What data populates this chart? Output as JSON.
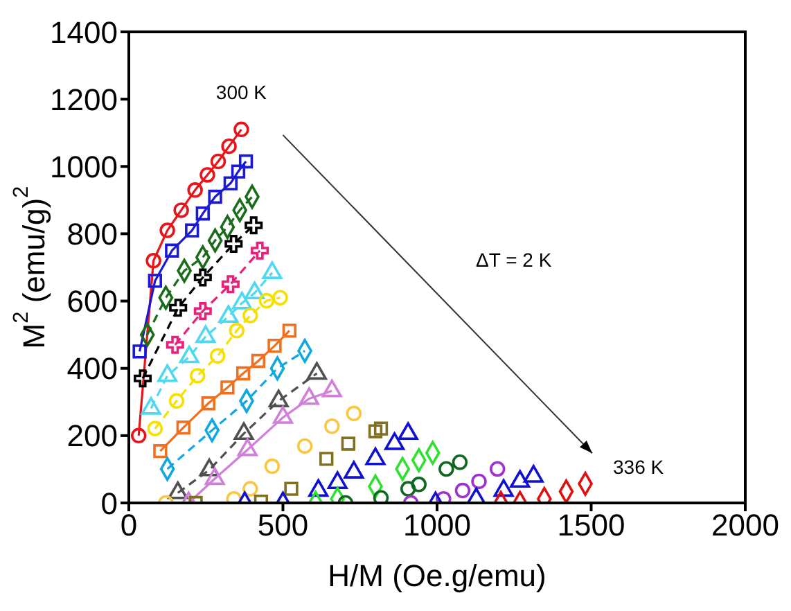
{
  "chart_data": {
    "type": "scatter",
    "xlabel": "H/M (Oe.g/emu)",
    "ylabel": "M$^{2}$ (emu/g)$^{2}$",
    "xlim": [
      0,
      2000
    ],
    "xticks": [
      0,
      500,
      1000,
      1500,
      2000
    ],
    "ylim": [
      0,
      1400
    ],
    "yticks": [
      0,
      200,
      400,
      600,
      800,
      1000,
      1200,
      1400
    ],
    "grid": false,
    "annotations": [
      {
        "text": "300 K",
        "x": 365,
        "y": 1110
      },
      {
        "text": "336 K",
        "x": 1481,
        "y": 57
      },
      "ΔT = 2 K"
    ],
    "series": [
      {
        "type": "line",
        "color": "#e8141a",
        "marker": "circle",
        "line_style": "solid",
        "x": [
          32,
          80,
          125,
          170,
          215,
          255,
          290,
          325,
          365
        ],
        "values": [
          200,
          720,
          810,
          870,
          930,
          975,
          1015,
          1060,
          1110
        ]
      },
      {
        "type": "line",
        "color": "#1a1ad6",
        "marker": "square",
        "line_style": "solid",
        "x": [
          35,
          85,
          140,
          205,
          240,
          280,
          330,
          355,
          380
        ],
        "values": [
          450,
          660,
          750,
          810,
          860,
          910,
          950,
          985,
          1015
        ]
      },
      {
        "type": "line",
        "color": "#1a6b1a",
        "marker": "diamond",
        "line_style": "dashed",
        "x": [
          60,
          120,
          180,
          240,
          280,
          320,
          360,
          400
        ],
        "values": [
          500,
          610,
          690,
          730,
          780,
          820,
          870,
          910
        ]
      },
      {
        "type": "line",
        "color": "#000000",
        "marker": "cross",
        "line_style": "dashed",
        "x": [
          45,
          160,
          240,
          340,
          405
        ],
        "values": [
          370,
          580,
          670,
          770,
          825
        ]
      },
      {
        "type": "line",
        "color": "#e8207a",
        "marker": "cross",
        "line_style": "dashed",
        "x": [
          150,
          240,
          330,
          425
        ],
        "values": [
          470,
          570,
          650,
          750
        ]
      },
      {
        "type": "line",
        "color": "#4fd8f0",
        "marker": "triangle",
        "line_style": "dashed",
        "x": [
          72,
          125,
          196,
          249,
          323,
          367,
          408,
          465
        ],
        "values": [
          281,
          378,
          434,
          494,
          554,
          594,
          624,
          684
        ]
      },
      {
        "type": "line",
        "color": "#f5e000",
        "marker": "circle",
        "line_style": "dashed",
        "x": [
          85,
          155,
          223,
          288,
          350,
          394,
          447,
          491
        ],
        "values": [
          221,
          303,
          378,
          437,
          512,
          557,
          601,
          610
        ]
      },
      {
        "type": "line",
        "color": "#f07020",
        "marker": "square",
        "line_style": "solid",
        "x": [
          102,
          177,
          258,
          320,
          371,
          420,
          473,
          521
        ],
        "values": [
          154,
          224,
          296,
          343,
          385,
          422,
          467,
          512
        ]
      },
      {
        "type": "line",
        "color": "#10a8e0",
        "marker": "diamond",
        "line_style": "dashed",
        "x": [
          125,
          270,
          382,
          482,
          571
        ],
        "values": [
          101,
          216,
          303,
          400,
          452
        ]
      },
      {
        "type": "line",
        "color": "#505050",
        "marker": "triangle",
        "line_style": "dashed",
        "x": [
          159,
          261,
          373,
          486,
          610
        ],
        "values": [
          30,
          98,
          206,
          303,
          385
        ]
      },
      {
        "type": "line",
        "color": "#d080d8",
        "marker": "triangle",
        "line_style": "solid",
        "x": [
          194,
          279,
          385,
          500,
          585,
          659
        ],
        "values": [
          0,
          72,
          158,
          254,
          310,
          333
        ]
      },
      {
        "color": "#f8c840",
        "marker": "circle",
        "x": [
          120,
          341,
          394,
          465,
          571,
          659,
          730
        ],
        "values": [
          0,
          12,
          42,
          109,
          169,
          228,
          266
        ]
      },
      {
        "color": "#807020",
        "marker": "square",
        "x": [
          217,
          429,
          527,
          641,
          712,
          800,
          818
        ],
        "values": [
          0,
          4,
          42,
          131,
          176,
          213,
          221
        ]
      },
      {
        "color": "#1010d0",
        "marker": "triangle",
        "x": [
          376,
          500,
          615,
          677,
          730,
          800,
          862,
          906
        ],
        "values": [
          0,
          0,
          37,
          60,
          91,
          131,
          176,
          206
        ]
      },
      {
        "color": "#30e030",
        "marker": "diamond",
        "x": [
          606,
          677,
          800,
          888,
          941,
          986
        ],
        "values": [
          0,
          12,
          49,
          101,
          127,
          149
        ]
      },
      {
        "color": "#106820",
        "marker": "circle",
        "x": [
          703,
          818,
          906,
          941,
          1030,
          1074
        ],
        "values": [
          0,
          15,
          42,
          55,
          101,
          121
        ]
      },
      {
        "color": "#a030d0",
        "marker": "circle",
        "x": [
          915,
          1021,
          1083,
          1136,
          1196
        ],
        "values": [
          0,
          12,
          37,
          64,
          101
        ]
      },
      {
        "color": "#1010d0",
        "marker": "triangle",
        "x": [
          995,
          1127,
          1216,
          1269,
          1313
        ],
        "values": [
          0,
          12,
          37,
          64,
          79
        ]
      },
      {
        "color": "#e01010",
        "marker": "diamond",
        "x": [
          1207,
          1269,
          1348,
          1419,
          1481
        ],
        "values": [
          0,
          0,
          12,
          34,
          57
        ]
      }
    ]
  }
}
